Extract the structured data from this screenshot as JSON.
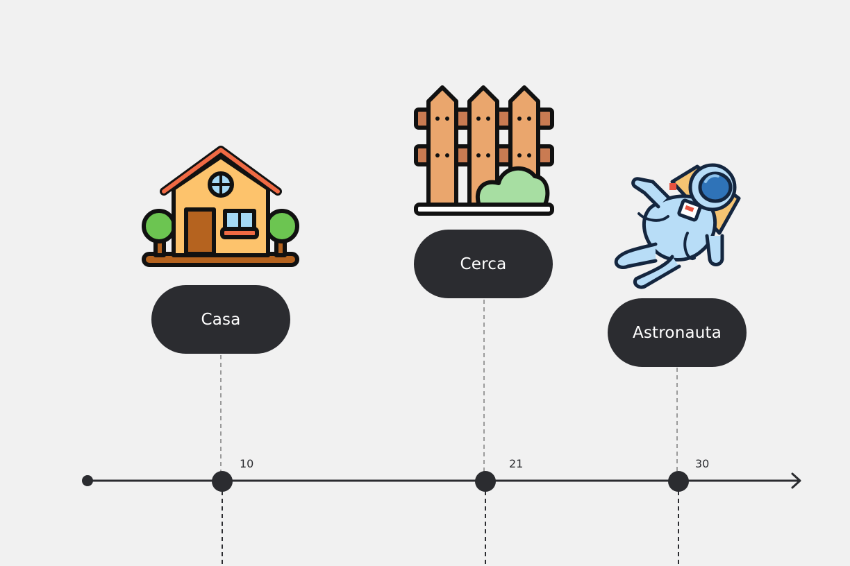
{
  "timeline": {
    "events": [
      {
        "label": "Casa",
        "value": "10",
        "icon": "house-icon"
      },
      {
        "label": "Cerca",
        "value": "21",
        "icon": "fence-icon"
      },
      {
        "label": "Astronauta",
        "value": "30",
        "icon": "astronaut-icon"
      }
    ]
  },
  "colors": {
    "background": "#f1f1f1",
    "pill": "#2b2c30",
    "pill_text": "#ffffff",
    "axis": "#2b2c30",
    "connector": "#9a9a9a"
  }
}
